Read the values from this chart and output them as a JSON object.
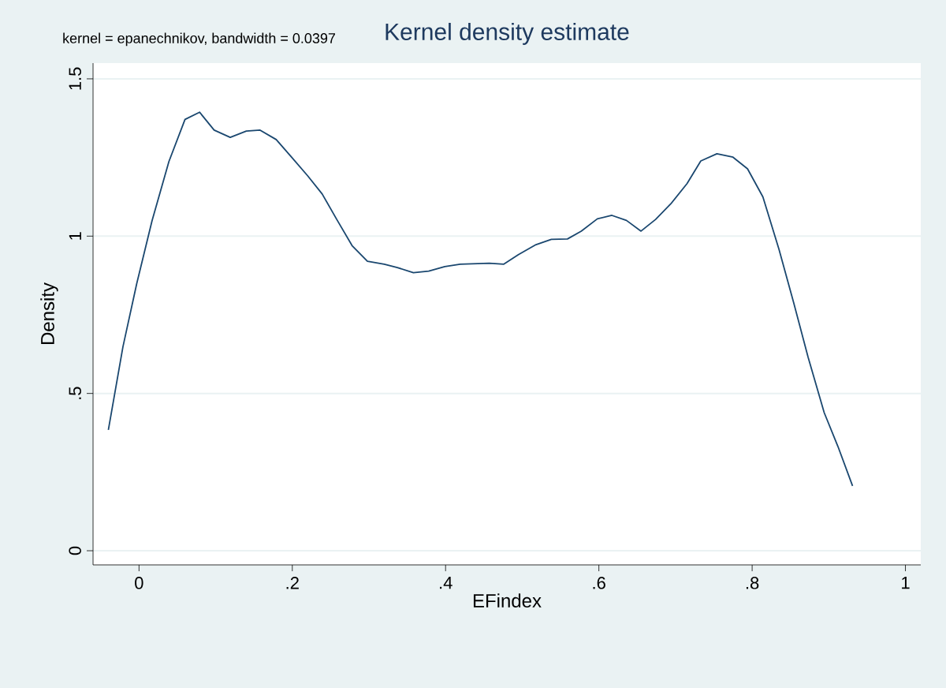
{
  "chart_data": {
    "type": "line",
    "title": "Kernel density estimate",
    "xlabel": "EFindex",
    "ylabel": "Density",
    "annotations": [
      "kernel = epanechnikov, bandwidth = 0.0397"
    ],
    "xlim": [
      -0.06,
      1.02
    ],
    "ylim": [
      -0.045,
      1.55
    ],
    "xticks": [
      0,
      {
        "value": 0.2,
        "label": ".2"
      },
      {
        "value": 0.4,
        "label": ".4"
      },
      {
        "value": 0.6,
        "label": ".6"
      },
      {
        "value": 0.8,
        "label": ".8"
      },
      1
    ],
    "yticks": [
      0,
      {
        "value": 0.5,
        "label": ".5"
      },
      1,
      1.5
    ],
    "grid": "y",
    "marker": "none",
    "line_style": "solid",
    "series": [
      {
        "color": "#1a476f",
        "x": [
          -0.04,
          -0.021,
          -0.003,
          0.017,
          0.039,
          0.06,
          0.079,
          0.098,
          0.119,
          0.14,
          0.158,
          0.179,
          0.199,
          0.22,
          0.239,
          0.258,
          0.278,
          0.298,
          0.32,
          0.337,
          0.358,
          0.378,
          0.399,
          0.419,
          0.457,
          0.476,
          0.495,
          0.518,
          0.538,
          0.559,
          0.577,
          0.598,
          0.617,
          0.636,
          0.655,
          0.674,
          0.694,
          0.715,
          0.733,
          0.754,
          0.775,
          0.794,
          0.814,
          0.835,
          0.854,
          0.873,
          0.894,
          0.912,
          0.931
        ],
        "values": [
          0.384,
          0.648,
          0.849,
          1.049,
          1.237,
          1.371,
          1.394,
          1.337,
          1.314,
          1.334,
          1.337,
          1.307,
          1.251,
          1.192,
          1.134,
          1.053,
          0.97,
          0.92,
          0.911,
          0.9,
          0.884,
          0.889,
          0.903,
          0.911,
          0.914,
          0.911,
          0.941,
          0.973,
          0.99,
          0.991,
          1.016,
          1.055,
          1.066,
          1.05,
          1.016,
          1.053,
          1.103,
          1.167,
          1.239,
          1.262,
          1.251,
          1.214,
          1.125,
          0.958,
          0.79,
          0.615,
          0.439,
          0.331,
          0.206
        ]
      }
    ]
  }
}
